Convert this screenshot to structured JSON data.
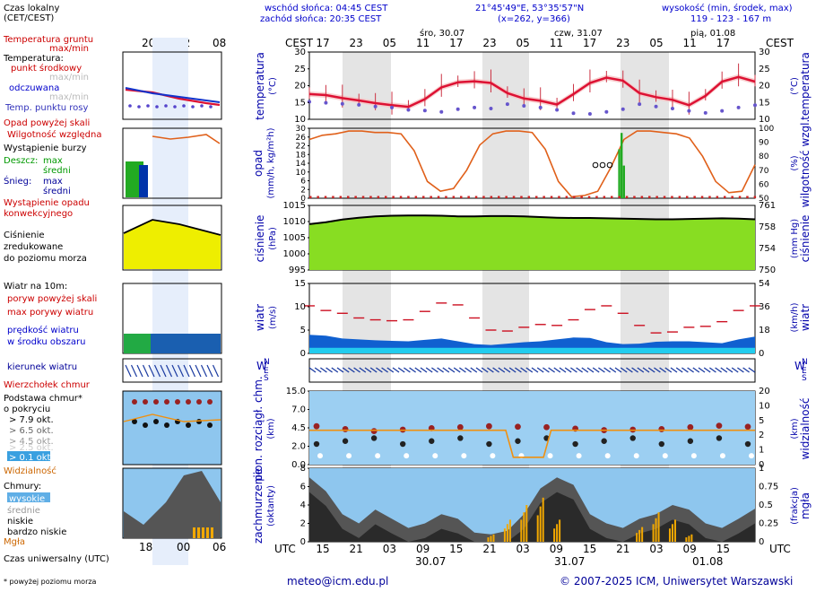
{
  "meteo_header": {
    "local_time_label": "Czas lokalny",
    "local_time_tz": "(CET/CEST)",
    "sunrise": "wschód słońca: 04:45 CEST",
    "sunset": "zachód słońca: 20:35 CEST",
    "coords": "21°45'49\"E, 53°35'57\"N",
    "grid_xy": "(x=262, y=366)",
    "height_title": "wysokość (min, środek, max)",
    "height_values": "119 - 123 - 167 m",
    "cest_left": "CEST",
    "cest_right": "CEST",
    "days": [
      "śro, 30.07",
      "czw, 31.07",
      "pią, 01.08"
    ],
    "top_hours": [
      "17",
      "23",
      "05",
      "11",
      "17",
      "23",
      "05",
      "11",
      "17",
      "23",
      "05",
      "11",
      "17"
    ],
    "legend_hours": [
      "20",
      "02",
      "08"
    ]
  },
  "legend": {
    "ground_temp": "Temperatura gruntu",
    "maxmin": "max/min",
    "temperature": "Temperatura:",
    "mid_point": "punkt środkowy",
    "max_min_grey": "max/min",
    "perceived": "odczuwana",
    "max_min_grey2": "max/min",
    "dew_point": "Temp. punktu rosy",
    "precip_above": "Opad powyżej skali",
    "rel_humidity": "Wilgotność względna",
    "storm": "Wystąpienie burzy",
    "rain_label": "Deszcz:",
    "rain_max": "max",
    "rain_avg": "średni",
    "snow_label": "Śnieg:",
    "snow_max": "max",
    "snow_avg": "średni",
    "convective": "Wystąpienie opadu",
    "convective2": "konwekcyjnego",
    "pressure_1": "Ciśnienie",
    "pressure_2": "zredukowane",
    "pressure_3": "do poziomu morza",
    "wind_10m": "Wiatr na 10m:",
    "gust_above": "poryw powyżej skali",
    "max_gusts": "max porywy wiatru",
    "wind_speed": "prędkość wiatru",
    "avg_area": "w środku obszaru",
    "wind_dir": "kierunek wiatru",
    "cloud_top": "Wierzchołek chmur",
    "cloud_base": "Podstawa chmur*",
    "by_cover": "o pokryciu",
    "okt_79": "> 7.9 okt.",
    "okt_65": "> 6.5 okt.",
    "okt_45": "> 4.5 okt.",
    "okt_25": "> 2.5 okt.",
    "okt_01": "> 0.1 okt.",
    "visibility": "Widzialność",
    "clouds": "Chmury:",
    "high": "wysokie",
    "mid": "średnie",
    "low": "niskie",
    "very_low": "bardzo niskie",
    "fog": "Mgła",
    "utc_label": "Czas uniwersalny (UTC)",
    "footnote": "* powyżej poziomu morza",
    "legend_utc_hours": [
      "18",
      "00",
      "06"
    ]
  },
  "axes": {
    "temp_left": "temperatura",
    "temp_left_unit": "(°C)",
    "temp_right": "temperatura",
    "temp_right_unit": "(°C)",
    "precip_left": "opad",
    "precip_left_unit": "(mm/h, kg/m²h)",
    "precip_right": "wilgotność wzgl.",
    "precip_right_unit": "(%)",
    "press_left": "ciśnienie",
    "press_left_unit": "(hPa)",
    "press_right": "ciśnienie",
    "press_right_unit": "(mm Hg)",
    "wind_left": "wiatr",
    "wind_left_unit": "(m/s)",
    "wind_right": "wiatr",
    "wind_right_unit": "(km/h)",
    "cloud_left": "pion. rozciągł. chm.",
    "cloud_left_unit": "(km)",
    "cloud_right": "widzialność",
    "cloud_right_unit": "(km)",
    "cover_left": "zachmurzenie",
    "cover_left_unit": "(oktanty)",
    "cover_right": "mgła",
    "cover_right_unit": "(frakcja)",
    "compass_n": "N",
    "compass_w": "W",
    "compass_e": "E",
    "compass_s": "S"
  },
  "footer": {
    "email": "meteo@icm.edu.pl",
    "copyright": "© 2007-2025 ICM, Uniwersytet Warszawski",
    "utc_left": "UTC",
    "utc_right": "UTC",
    "bottom_hours": [
      "15",
      "21",
      "03",
      "09",
      "15",
      "21",
      "03",
      "09",
      "15",
      "21",
      "03",
      "09",
      "15"
    ],
    "bottom_dates": [
      "30.07",
      "31.07",
      "01.08"
    ]
  },
  "chart_data": [
    {
      "type": "line",
      "title": "temperatura",
      "ylabel": "(°C)",
      "ylim": [
        10,
        30
      ],
      "yticks": [
        10,
        15,
        20,
        25,
        30
      ],
      "hours_utc_start": 15,
      "step_h": 3,
      "series": [
        {
          "name": "punkt środkowy",
          "color": "#dd1133",
          "values": [
            17.5,
            17.2,
            16.3,
            15.6,
            14.8,
            14.2,
            13.7,
            16.0,
            19.5,
            21.0,
            21.3,
            20.8,
            17.8,
            16.2,
            15.5,
            14.4,
            17.5,
            20.8,
            22.4,
            21.5,
            17.8,
            16.6,
            15.8,
            14.2,
            17.0,
            21.2,
            22.6,
            21.2
          ]
        },
        {
          "name": "Temp. punktu rosy",
          "color": "#5544cc",
          "values": [
            15.2,
            14.9,
            14.6,
            14.3,
            13.8,
            13.5,
            12.8,
            12.6,
            12.2,
            13.0,
            13.5,
            13.2,
            14.5,
            14.0,
            13.5,
            12.8,
            11.8,
            11.6,
            12.2,
            13.0,
            14.5,
            13.8,
            13.2,
            12.5,
            11.9,
            12.5,
            13.5,
            14.2
          ]
        }
      ]
    },
    {
      "type": "bar",
      "title": "opad / wilgotność",
      "ylim": [
        0,
        30
      ],
      "yticks": [
        2,
        6,
        10,
        14,
        18,
        22,
        26,
        30
      ],
      "humidity_ylim": [
        50,
        100
      ],
      "humidity_yticks": [
        50,
        60,
        70,
        80,
        90,
        100
      ],
      "humidity": [
        92,
        95,
        96,
        98,
        98,
        97,
        97,
        96,
        84,
        62,
        55,
        57,
        70,
        88,
        96,
        98,
        98,
        97,
        85,
        62,
        51,
        52,
        55,
        72,
        92,
        98,
        98,
        97,
        96,
        93,
        80,
        62,
        54,
        55,
        74
      ],
      "precip_bars": [
        {
          "hour_index": 19,
          "value": 6
        },
        {
          "hour_index": 20,
          "value": 8
        },
        {
          "hour_index": 21,
          "value": 4
        }
      ]
    },
    {
      "type": "area",
      "title": "ciśnienie",
      "ylabel": "(hPa)",
      "ylim": [
        995,
        1015
      ],
      "yticks": [
        1000,
        1005,
        1010,
        1015
      ],
      "right_yticks": [
        "750",
        "754",
        "758",
        "761"
      ],
      "values": [
        1009.2,
        1009.8,
        1010.6,
        1011.2,
        1011.6,
        1011.8,
        1011.9,
        1011.9,
        1011.8,
        1011.6,
        1011.6,
        1011.7,
        1011.7,
        1011.6,
        1011.4,
        1011.2,
        1011.1,
        1011.1,
        1011.0,
        1010.9,
        1010.8,
        1010.7,
        1010.7,
        1010.8,
        1010.9,
        1011.0,
        1010.9,
        1010.7
      ]
    },
    {
      "type": "area",
      "title": "wiatr",
      "ylabel": "(m/s)",
      "ylim": [
        0,
        15
      ],
      "yticks": [
        0,
        5,
        10,
        15
      ],
      "right_yticks": [
        "0",
        "18",
        "36",
        "54"
      ],
      "speed": [
        4.0,
        3.8,
        3.2,
        3.0,
        2.8,
        2.7,
        2.6,
        2.9,
        3.2,
        2.6,
        2.0,
        1.8,
        2.1,
        2.4,
        2.6,
        3.0,
        3.4,
        3.3,
        2.4,
        2.0,
        2.1,
        2.5,
        2.6,
        2.6,
        2.4,
        2.2,
        3.0,
        3.6
      ],
      "gusts": [
        10.2,
        9.2,
        8.6,
        7.6,
        7.2,
        7.0,
        7.2,
        9.0,
        10.8,
        10.4,
        7.6,
        5.0,
        4.8,
        5.6,
        6.2,
        6.0,
        7.2,
        9.4,
        10.2,
        8.6,
        6.0,
        4.4,
        4.6,
        5.6,
        5.8,
        6.8,
        9.2,
        10.2
      ]
    },
    {
      "type": "scatter",
      "title": "chmury",
      "ylabel": "(km)",
      "ylim": [
        0,
        15
      ],
      "yticks": [
        0.0,
        2.0,
        4.5,
        7.0,
        15.0
      ],
      "right_yticks": [
        "0",
        "1",
        "2",
        "5",
        "10",
        "20"
      ],
      "base_79": [
        8.2,
        7.6,
        7.2,
        7.5,
        7.8,
        8.0,
        8.2,
        8.1,
        8.0,
        7.7,
        7.4,
        7.5,
        7.6,
        8.0,
        8.3,
        8.1
      ],
      "visibility_line": [
        20,
        20,
        20,
        20,
        20,
        20,
        20,
        20,
        3,
        3,
        20,
        20,
        20,
        20,
        20,
        20
      ]
    },
    {
      "type": "area",
      "title": "zachmurzenie",
      "ylabel": "(oktanty)",
      "ylim": [
        0,
        8
      ],
      "yticks": [
        0,
        2,
        4,
        6,
        8
      ],
      "right_yticks": [
        "0",
        "0.25",
        "0.5",
        "0.75",
        "1"
      ],
      "low_clouds": [
        7.0,
        5.5,
        3.0,
        2.0,
        3.5,
        2.5,
        1.5,
        2.0,
        3.0,
        2.5,
        1.0,
        0.8,
        1.2,
        3.0,
        5.8,
        7.0,
        6.2,
        3.0,
        2.0,
        1.5,
        2.5,
        3.0,
        4.0,
        3.5,
        2.0,
        1.5,
        2.5,
        3.6
      ],
      "fog_bars": [
        0,
        0,
        0,
        0,
        0,
        0,
        0,
        0,
        0,
        0,
        0,
        0.1,
        0.3,
        0.5,
        0.6,
        0.3,
        0,
        0,
        0,
        0,
        0.2,
        0.4,
        0.3,
        0.1,
        0,
        0,
        0,
        0
      ]
    }
  ]
}
